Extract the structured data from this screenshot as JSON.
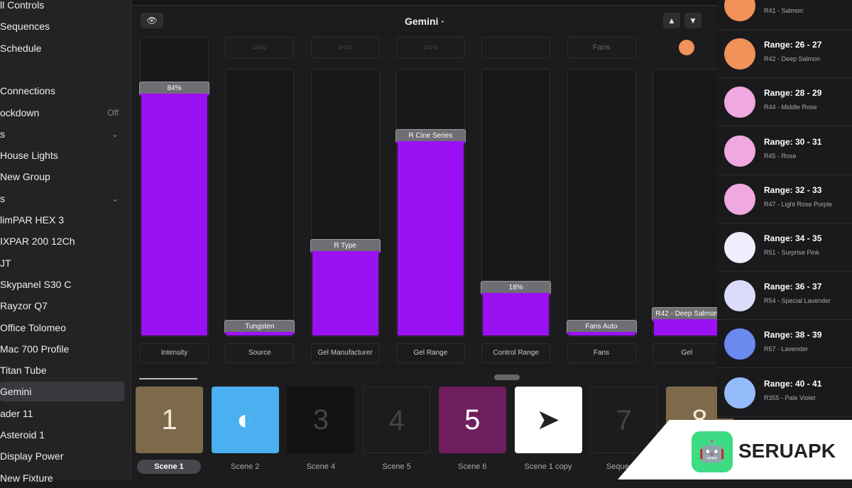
{
  "sidebar": {
    "items": [
      {
        "label": "ll Controls"
      },
      {
        "label": "Sequences"
      },
      {
        "label": "Schedule"
      },
      {
        "label": ""
      },
      {
        "label": "Connections"
      },
      {
        "label": "ockdown",
        "value": "Off"
      },
      {
        "label": "s",
        "chevron": true
      },
      {
        "label": "House Lights"
      },
      {
        "label": "New Group"
      },
      {
        "label": "s",
        "chevron": true
      },
      {
        "label": "limPAR HEX 3"
      },
      {
        "label": "IXPAR 200 12Ch"
      },
      {
        "label": "JT"
      },
      {
        "label": "Skypanel S30 C"
      },
      {
        "label": "Rayzor Q7"
      },
      {
        "label": "Office Tolomeo"
      },
      {
        "label": "Mac 700 Profile"
      },
      {
        "label": "Titan Tube"
      },
      {
        "label": "Gemini",
        "active": true
      },
      {
        "label": "ader 11"
      },
      {
        "label": "Asteroid 1"
      },
      {
        "label": "Display Power"
      },
      {
        "label": "New Fixture"
      }
    ]
  },
  "header": {
    "title": "Gemini ·",
    "up": "▲",
    "down": "▼"
  },
  "faders": [
    {
      "label": "Intensity",
      "value": "84%",
      "level": 0.84,
      "top": null
    },
    {
      "label": "Source",
      "value": "Tungsten",
      "level": 0.03,
      "top": "○○○"
    },
    {
      "label": "Gel Manufacturer",
      "value": "R Type",
      "level": 0.34,
      "top": "○○○"
    },
    {
      "label": "Gel Range",
      "value": "R Cine Series",
      "level": 0.76,
      "top": "○○○"
    },
    {
      "label": "Control Range",
      "value": "18%",
      "level": 0.18,
      "top": ""
    },
    {
      "label": "Fans",
      "value": "Fans Auto",
      "level": 0.03,
      "top": "Fans"
    },
    {
      "label": "Gel",
      "value": "R42 - Deep Salmon",
      "level": 0.08,
      "top": "dot"
    }
  ],
  "scenes": [
    {
      "label": "Scene 1",
      "glyph": "1",
      "bg": "#7d6a4a",
      "color": "#f3ead8",
      "active": true
    },
    {
      "label": "Scene 2",
      "glyph": "◐",
      "bg": "#4ab0f0",
      "color": "#fff"
    },
    {
      "label": "Scene 4",
      "glyph": "3",
      "bg": "#121213",
      "color": "#444"
    },
    {
      "label": "Scene 5",
      "glyph": "4",
      "bg": "#1c1c1e",
      "color": "#444"
    },
    {
      "label": "Scene 6",
      "glyph": "5",
      "bg": "#6e1e5c",
      "color": "#fff"
    },
    {
      "label": "Scene 1 copy",
      "glyph": "➤",
      "bg": "#ffffff",
      "color": "#222"
    },
    {
      "label": "Sequence",
      "glyph": "7",
      "bg": "#1c1c1e",
      "color": "#444"
    },
    {
      "label": "",
      "glyph": "8",
      "bg": "#7d6a4a",
      "color": "#f3ead8"
    }
  ],
  "gels": [
    {
      "range": "",
      "name": "R41  - Salmon",
      "color": "#f0925a"
    },
    {
      "range": "Range: 26 - 27",
      "name": "R42  - Deep Salmon",
      "color": "#f0925a"
    },
    {
      "range": "Range: 28 - 29",
      "name": "R44  - Middle Rose",
      "color": "#f0a8e0"
    },
    {
      "range": "Range: 30 - 31",
      "name": "R45  - Rose",
      "color": "#f0a8e0"
    },
    {
      "range": "Range: 32 - 33",
      "name": "R47  - Light Rose Purple",
      "color": "#f0a8e0"
    },
    {
      "range": "Range: 34 - 35",
      "name": "R51  - Surprise Pink",
      "color": "#eeeefc"
    },
    {
      "range": "Range: 36 - 37",
      "name": "R54  - Special Lavender",
      "color": "#dcdcfa"
    },
    {
      "range": "Range: 38 - 39",
      "name": "R57  - Lavender",
      "color": "#6a8af0"
    },
    {
      "range": "Range: 40 - 41",
      "name": "R355  - Pale Violet",
      "color": "#94bcfa"
    }
  ],
  "watermark": {
    "text": "SERUAPK"
  }
}
